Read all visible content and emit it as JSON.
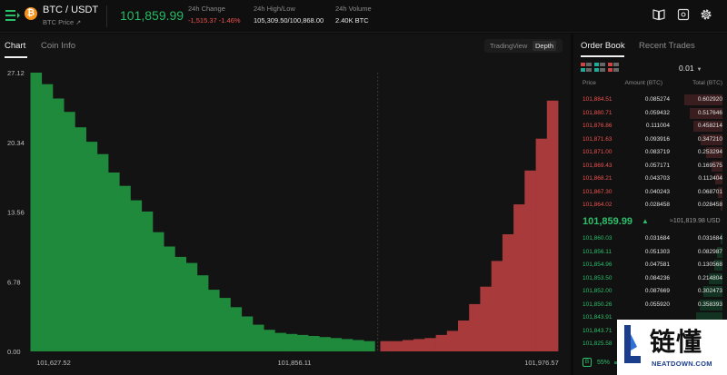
{
  "header": {
    "pair": "BTC / USDT",
    "pair_sub": "BTC Price",
    "last_price": "101,859.99",
    "change_label": "24h Change",
    "change_value": "-1,515.37 -1.46%",
    "highlow_label": "24h High/Low",
    "highlow_value": "105,309.50/100,868.00",
    "volume_label": "24h Volume",
    "volume_value": "2.40K BTC",
    "icons": [
      "guide-book-icon",
      "settings-layout-icon",
      "gear-icon"
    ]
  },
  "chart_panel": {
    "tabs": [
      "Chart",
      "Coin Info"
    ],
    "active_tab": "Chart",
    "view_options": [
      "TradingView",
      "Depth"
    ],
    "active_view": "Depth"
  },
  "chart_data": {
    "type": "area",
    "title": "",
    "xlabel": "",
    "ylabel": "",
    "x_tick_labels": [
      "101,627.52",
      "101,856.11",
      "101,976.57"
    ],
    "y_tick_labels": [
      "27.12",
      "20.34",
      "13.56",
      "6.78",
      "0.00"
    ],
    "ylim": [
      0,
      27.12
    ],
    "xlim": [
      101609,
      101988
    ],
    "mid_price": 101858.2,
    "grid": false,
    "series": [
      {
        "name": "Bids",
        "color": "#1f8a3c",
        "x": [
          101612,
          101620,
          101628,
          101636,
          101644,
          101652,
          101660,
          101668,
          101676,
          101684,
          101692,
          101700,
          101708,
          101716,
          101724,
          101732,
          101740,
          101748,
          101756,
          101764,
          101772,
          101780,
          101788,
          101796,
          101804,
          101812,
          101820,
          101828,
          101836,
          101844,
          101852
        ],
        "values": [
          27.12,
          26.0,
          24.6,
          23.3,
          21.8,
          20.4,
          19.2,
          17.4,
          16.1,
          14.7,
          13.6,
          11.6,
          10.2,
          9.2,
          8.6,
          7.4,
          6.0,
          5.2,
          4.3,
          3.4,
          2.6,
          2.1,
          1.8,
          1.7,
          1.6,
          1.5,
          1.4,
          1.3,
          1.2,
          1.1,
          1.0
        ]
      },
      {
        "name": "Asks",
        "color": "#a83a3c",
        "x": [
          101864,
          101872,
          101880,
          101888,
          101896,
          101904,
          101912,
          101920,
          101928,
          101936,
          101944,
          101952,
          101960,
          101968,
          101976,
          101984
        ],
        "values": [
          1.0,
          1.0,
          1.1,
          1.2,
          1.3,
          1.6,
          2.0,
          3.0,
          4.6,
          6.3,
          8.8,
          11.4,
          14.3,
          17.6,
          20.7,
          24.4
        ]
      }
    ]
  },
  "order_book": {
    "tabs": [
      "Order Book",
      "Recent Trades"
    ],
    "active_tab": "Order Book",
    "precision": "0.01",
    "headers": {
      "price": "Price",
      "amount": "Amount (BTC)",
      "total": "Total (BTC)"
    },
    "asks": [
      {
        "price": "101,884.51",
        "amount": "0.085274",
        "total": "0.602920",
        "fill": 1.0
      },
      {
        "price": "101,880.71",
        "amount": "0.059432",
        "total": "0.517646",
        "fill": 0.86
      },
      {
        "price": "101,876.86",
        "amount": "0.111004",
        "total": "0.458214",
        "fill": 0.76
      },
      {
        "price": "101,871.63",
        "amount": "0.093916",
        "total": "0.347210",
        "fill": 0.58
      },
      {
        "price": "101,871.00",
        "amount": "0.083719",
        "total": "0.253294",
        "fill": 0.42
      },
      {
        "price": "101,869.43",
        "amount": "0.057171",
        "total": "0.169575",
        "fill": 0.28
      },
      {
        "price": "101,868.21",
        "amount": "0.043703",
        "total": "0.112404",
        "fill": 0.19
      },
      {
        "price": "101,867.30",
        "amount": "0.040243",
        "total": "0.068701",
        "fill": 0.11
      },
      {
        "price": "101,864.02",
        "amount": "0.028458",
        "total": "0.028458",
        "fill": 0.05
      }
    ],
    "mid_price": "101,859.99",
    "mid_arrow": "▲",
    "mid_usd": "≈101,819.98 USD",
    "bids": [
      {
        "price": "101,860.03",
        "amount": "0.031684",
        "total": "0.031684",
        "fill": 0.05
      },
      {
        "price": "101,856.11",
        "amount": "0.051303",
        "total": "0.082987",
        "fill": 0.14
      },
      {
        "price": "101,854.96",
        "amount": "0.047581",
        "total": "0.130568",
        "fill": 0.22
      },
      {
        "price": "101,853.50",
        "amount": "0.084236",
        "total": "0.214804",
        "fill": 0.36
      },
      {
        "price": "101,852.00",
        "amount": "0.087669",
        "total": "0.302473",
        "fill": 0.5
      },
      {
        "price": "101,850.26",
        "amount": "0.055920",
        "total": "0.358393",
        "fill": 0.6
      },
      {
        "price": "101,843.91",
        "amount": "",
        "total": "",
        "fill": 0.7
      },
      {
        "price": "101,843.71",
        "amount": "",
        "total": "",
        "fill": 0.8
      },
      {
        "price": "101,825.58",
        "amount": "",
        "total": "",
        "fill": 0.9
      }
    ],
    "buy_badge": "B",
    "buy_ratio_label": "55%",
    "buy_ratio": 0.55
  },
  "watermark": {
    "text_cn": "链懂",
    "url": "NEATDOWN.COM"
  }
}
